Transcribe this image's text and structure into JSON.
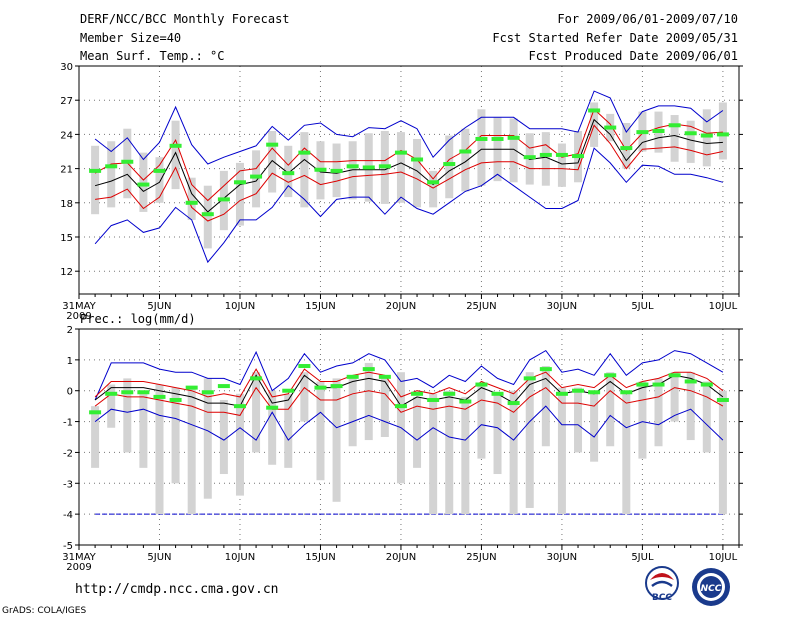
{
  "header": {
    "title": "DERF/NCC/BCC Monthly Forecast",
    "member_size": "Member Size=40",
    "variable": "Mean Surf. Temp.: °C",
    "period": "For 2009/06/01-2009/07/10",
    "started": "Fcst Started Refer Date 2009/05/31",
    "produced": "Fcst Produced Date 2009/06/01"
  },
  "footer": {
    "url": "http://cmdp.ncc.cma.gov.cn",
    "grads": "GrADS: COLA/IGES",
    "logo_bcc_text": "BCC",
    "logo_ncc_text": "NCC"
  },
  "colors": {
    "box": "#d3d3d3",
    "median": "#33ee33",
    "envelope": "#0000cc",
    "spread": "#dd0000",
    "mean": "#000000",
    "grid": "#777777"
  },
  "chart_data": [
    {
      "type": "box",
      "title": "Mean Surf. Temp.: °C",
      "ylim": [
        10,
        30
      ],
      "yticks": [
        12,
        15,
        18,
        21,
        24,
        27,
        30
      ],
      "xticks": [
        "31MAY",
        "5JUN",
        "10JUN",
        "15JUN",
        "20JUN",
        "25JUN",
        "30JUN",
        "5JUL",
        "10JUL"
      ],
      "xtick_days": [
        0,
        5,
        10,
        15,
        20,
        25,
        30,
        35,
        40
      ],
      "year_label": "2009",
      "days": [
        1,
        2,
        3,
        4,
        5,
        6,
        7,
        8,
        9,
        10,
        11,
        12,
        13,
        14,
        15,
        16,
        17,
        18,
        19,
        20,
        21,
        22,
        23,
        24,
        25,
        26,
        27,
        28,
        29,
        30,
        31,
        32,
        33,
        34,
        35,
        36,
        37,
        38,
        39,
        40
      ],
      "box_low": [
        17.0,
        17.6,
        18.4,
        17.2,
        18.0,
        19.2,
        16.5,
        14.0,
        15.6,
        16.0,
        17.6,
        18.9,
        18.5,
        17.6,
        18.3,
        18.5,
        18.3,
        18.1,
        17.9,
        18.0,
        17.6,
        17.6,
        18.4,
        19.0,
        19.5,
        19.9,
        19.8,
        19.6,
        19.5,
        19.4,
        19.8,
        22.9,
        23.4,
        21.0,
        22.5,
        22.4,
        21.6,
        21.5,
        21.2,
        21.8
      ],
      "box_high": [
        23.0,
        23.4,
        24.5,
        22.4,
        22.0,
        25.2,
        20.2,
        19.5,
        20.8,
        21.5,
        22.6,
        24.3,
        23.0,
        24.2,
        23.4,
        23.2,
        23.4,
        24.1,
        24.3,
        24.2,
        23.6,
        20.8,
        23.9,
        24.5,
        26.2,
        25.5,
        25.4,
        24.1,
        24.2,
        23.2,
        24.3,
        26.8,
        25.8,
        25.0,
        26.0,
        26.0,
        25.7,
        25.2,
        26.2,
        26.8
      ],
      "median": [
        20.8,
        21.2,
        21.6,
        19.6,
        20.8,
        23.0,
        18.0,
        17.0,
        18.3,
        19.8,
        20.3,
        23.1,
        20.6,
        22.4,
        20.9,
        20.8,
        21.2,
        21.1,
        21.2,
        22.4,
        21.8,
        19.8,
        21.4,
        22.5,
        23.6,
        23.6,
        23.7,
        22.0,
        22.2,
        22.2,
        22.1,
        26.1,
        24.6,
        22.8,
        24.2,
        24.3,
        24.8,
        24.1,
        23.9,
        24.0
      ],
      "mean": [
        19.5,
        19.9,
        20.5,
        19.0,
        19.8,
        22.4,
        18.8,
        17.2,
        18.4,
        19.6,
        19.9,
        21.7,
        20.6,
        21.8,
        20.7,
        20.6,
        20.9,
        20.9,
        20.9,
        21.5,
        20.8,
        19.6,
        20.8,
        21.6,
        22.7,
        22.7,
        22.7,
        21.8,
        22.0,
        21.4,
        21.5,
        25.3,
        24.0,
        21.7,
        23.3,
        23.7,
        23.9,
        23.5,
        23.2,
        23.3
      ],
      "env_low": [
        14.4,
        16.0,
        16.5,
        15.4,
        15.8,
        17.6,
        16.5,
        12.8,
        14.5,
        16.5,
        16.5,
        17.6,
        19.5,
        18.3,
        16.8,
        18.3,
        18.5,
        18.5,
        17.0,
        18.5,
        17.5,
        17.0,
        18.0,
        19.0,
        19.5,
        20.5,
        19.5,
        18.5,
        17.5,
        17.5,
        18.2,
        22.8,
        21.5,
        19.8,
        21.3,
        21.2,
        20.5,
        20.5,
        20.2,
        19.8
      ],
      "env_high": [
        23.6,
        22.5,
        23.7,
        21.8,
        23.3,
        26.4,
        23.1,
        21.4,
        22.0,
        22.5,
        23.0,
        24.7,
        23.5,
        24.8,
        25.0,
        24.0,
        23.8,
        24.6,
        24.5,
        25.2,
        24.5,
        22.0,
        23.5,
        24.6,
        25.5,
        25.5,
        25.5,
        24.5,
        24.5,
        24.5,
        24.2,
        27.8,
        27.2,
        24.2,
        26.0,
        26.5,
        26.5,
        26.3,
        25.1,
        26.1
      ],
      "spread_low": [
        18.3,
        18.5,
        19.2,
        17.5,
        18.5,
        21.1,
        17.6,
        16.4,
        17.0,
        18.2,
        18.8,
        20.6,
        19.8,
        20.4,
        19.6,
        19.9,
        20.3,
        20.4,
        20.5,
        20.7,
        20.1,
        19.3,
        20.1,
        20.9,
        21.5,
        21.6,
        21.6,
        21.0,
        21.0,
        21.0,
        20.9,
        24.8,
        23.2,
        21.0,
        22.7,
        22.8,
        22.9,
        22.6,
        22.2,
        22.5
      ],
      "spread_high": [
        20.6,
        21.4,
        21.5,
        20.0,
        21.3,
        23.5,
        19.6,
        18.2,
        19.5,
        20.8,
        21.0,
        22.8,
        21.3,
        22.8,
        21.6,
        21.6,
        21.7,
        21.7,
        21.7,
        22.6,
        21.8,
        20.1,
        21.8,
        22.6,
        23.9,
        23.9,
        23.9,
        22.8,
        23.1,
        22.0,
        22.3,
        26.2,
        24.9,
        22.6,
        24.1,
        24.6,
        24.9,
        24.7,
        24.1,
        24.2
      ]
    },
    {
      "type": "box",
      "title": "Prec.: log(mm/d)",
      "ylim": [
        -5,
        2
      ],
      "yticks": [
        -5,
        -4,
        -3,
        -2,
        -1,
        0,
        1,
        2
      ],
      "xticks": [
        "31MAY",
        "5JUN",
        "10JUN",
        "15JUN",
        "20JUN",
        "25JUN",
        "30JUN",
        "5JUL",
        "10JUL"
      ],
      "xtick_days": [
        0,
        5,
        10,
        15,
        20,
        25,
        30,
        35,
        40
      ],
      "year_label": "2009",
      "baseline": -4,
      "days": [
        1,
        2,
        3,
        4,
        5,
        6,
        7,
        8,
        9,
        10,
        11,
        12,
        13,
        14,
        15,
        16,
        17,
        18,
        19,
        20,
        21,
        22,
        23,
        24,
        25,
        26,
        27,
        28,
        29,
        30,
        31,
        32,
        33,
        34,
        35,
        36,
        37,
        38,
        39,
        40
      ],
      "box_low": [
        -2.5,
        -1.2,
        -2.0,
        -2.5,
        -4.0,
        -3.0,
        -4.0,
        -3.5,
        -2.7,
        -3.4,
        -2.0,
        -2.4,
        -2.5,
        -1.0,
        -2.9,
        -3.6,
        -1.8,
        -1.6,
        -1.5,
        -3.0,
        -2.5,
        -4.0,
        -4.0,
        -4.0,
        -2.2,
        -2.7,
        -4.0,
        -3.8,
        -1.8,
        -4.0,
        -2.0,
        -2.3,
        -1.8,
        -4.0,
        -2.2,
        -1.8,
        -1.0,
        -1.6,
        -2.0,
        -4.0
      ],
      "box_high": [
        -0.5,
        0.2,
        0.4,
        0.0,
        0.2,
        0.1,
        0.1,
        0.4,
        -0.3,
        -0.1,
        0.6,
        0.0,
        -0.1,
        0.6,
        0.3,
        0.4,
        0.5,
        0.9,
        0.5,
        0.6,
        -0.2,
        -0.1,
        0.0,
        -0.2,
        0.2,
        -0.1,
        0.0,
        0.6,
        0.8,
        0.1,
        0.1,
        0.0,
        0.6,
        0.0,
        0.3,
        0.4,
        0.6,
        0.6,
        0.3,
        0.0
      ],
      "median": [
        -0.7,
        -0.1,
        -0.05,
        -0.05,
        -0.2,
        -0.3,
        0.1,
        -0.05,
        0.15,
        -0.5,
        0.4,
        -0.55,
        0.0,
        0.8,
        0.1,
        0.15,
        0.45,
        0.7,
        0.45,
        -0.5,
        -0.1,
        -0.3,
        -0.1,
        -0.35,
        0.2,
        -0.1,
        -0.4,
        0.4,
        0.7,
        -0.1,
        0.0,
        -0.05,
        0.5,
        -0.05,
        0.2,
        0.2,
        0.5,
        0.3,
        0.2,
        -0.3
      ],
      "mean": [
        -0.3,
        0.1,
        0.1,
        0.1,
        0.0,
        -0.1,
        -0.2,
        -0.4,
        -0.4,
        -0.5,
        0.5,
        -0.4,
        -0.3,
        0.5,
        0.1,
        0.1,
        0.3,
        0.4,
        0.3,
        -0.5,
        -0.2,
        -0.3,
        -0.2,
        -0.3,
        0.1,
        -0.1,
        -0.4,
        0.2,
        0.4,
        -0.1,
        0.0,
        -0.1,
        0.3,
        -0.1,
        0.1,
        0.2,
        0.5,
        0.4,
        0.2,
        -0.2
      ],
      "env_low": [
        -1.0,
        -0.6,
        -0.7,
        -0.6,
        -0.8,
        -0.9,
        -1.1,
        -1.3,
        -1.6,
        -1.2,
        -1.6,
        -0.7,
        -1.6,
        -1.1,
        -0.7,
        -1.2,
        -1.0,
        -0.8,
        -1.0,
        -1.2,
        -1.6,
        -1.2,
        -1.5,
        -1.6,
        -1.1,
        -1.2,
        -1.6,
        -1.0,
        -0.5,
        -1.1,
        -1.1,
        -1.5,
        -0.8,
        -1.2,
        -1.0,
        -1.1,
        -0.8,
        -0.6,
        -1.1,
        -1.6
      ],
      "env_high": [
        -0.3,
        0.9,
        0.9,
        0.9,
        0.7,
        0.6,
        0.6,
        0.4,
        0.4,
        0.2,
        1.25,
        0.0,
        0.4,
        1.2,
        0.6,
        0.8,
        0.9,
        1.2,
        1.0,
        0.3,
        0.4,
        0.1,
        0.5,
        0.3,
        0.8,
        0.4,
        0.2,
        1.0,
        1.3,
        0.6,
        0.7,
        0.5,
        1.2,
        0.5,
        0.9,
        1.0,
        1.3,
        1.2,
        0.9,
        0.6
      ],
      "spread_low": [
        -0.5,
        -0.1,
        -0.2,
        -0.2,
        -0.3,
        -0.4,
        -0.5,
        -0.7,
        -0.7,
        -0.8,
        0.1,
        -0.6,
        -0.6,
        0.1,
        -0.3,
        -0.3,
        -0.1,
        0.0,
        -0.1,
        -0.7,
        -0.5,
        -0.6,
        -0.5,
        -0.6,
        -0.3,
        -0.4,
        -0.7,
        -0.2,
        0.1,
        -0.4,
        -0.4,
        -0.5,
        0.0,
        -0.4,
        -0.3,
        -0.2,
        0.1,
        0.0,
        -0.2,
        -0.5
      ],
      "spread_high": [
        -0.2,
        0.3,
        0.3,
        0.3,
        0.2,
        0.1,
        0.0,
        -0.2,
        -0.1,
        -0.2,
        0.7,
        -0.2,
        -0.1,
        0.7,
        0.3,
        0.3,
        0.5,
        0.6,
        0.5,
        -0.2,
        0.0,
        -0.1,
        0.1,
        -0.1,
        0.3,
        0.1,
        -0.1,
        0.4,
        0.6,
        0.1,
        0.2,
        0.1,
        0.5,
        0.1,
        0.3,
        0.4,
        0.6,
        0.6,
        0.4,
        0.0
      ]
    }
  ]
}
